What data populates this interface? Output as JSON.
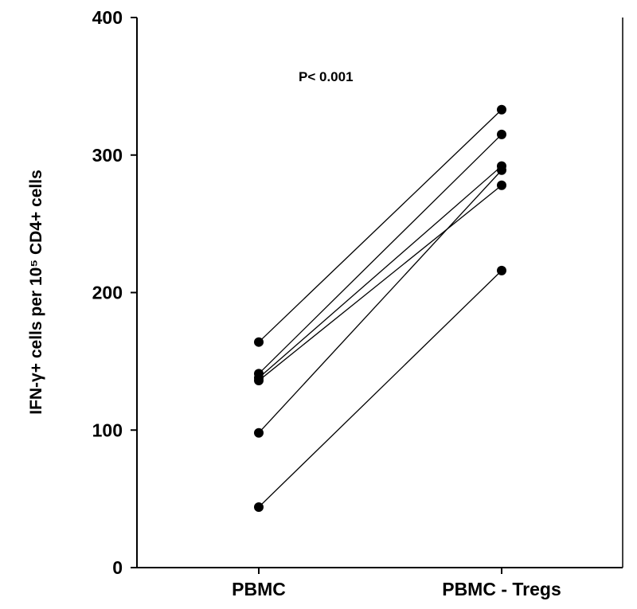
{
  "chart_data": {
    "type": "scatter",
    "categories": [
      "PBMC",
      "PBMC - Tregs"
    ],
    "ylabel": "IFN-γ+ cells per 10⁵ CD4+ cells",
    "ylim": [
      0,
      400
    ],
    "yticks": [
      0,
      100,
      200,
      300,
      400
    ],
    "annotation": "P< 0.001",
    "grid": false,
    "pairs": [
      {
        "values": [
          164,
          333
        ]
      },
      {
        "values": [
          141,
          315
        ]
      },
      {
        "values": [
          138,
          292
        ]
      },
      {
        "values": [
          136,
          278
        ]
      },
      {
        "values": [
          98,
          289
        ]
      },
      {
        "values": [
          44,
          216
        ]
      }
    ]
  }
}
